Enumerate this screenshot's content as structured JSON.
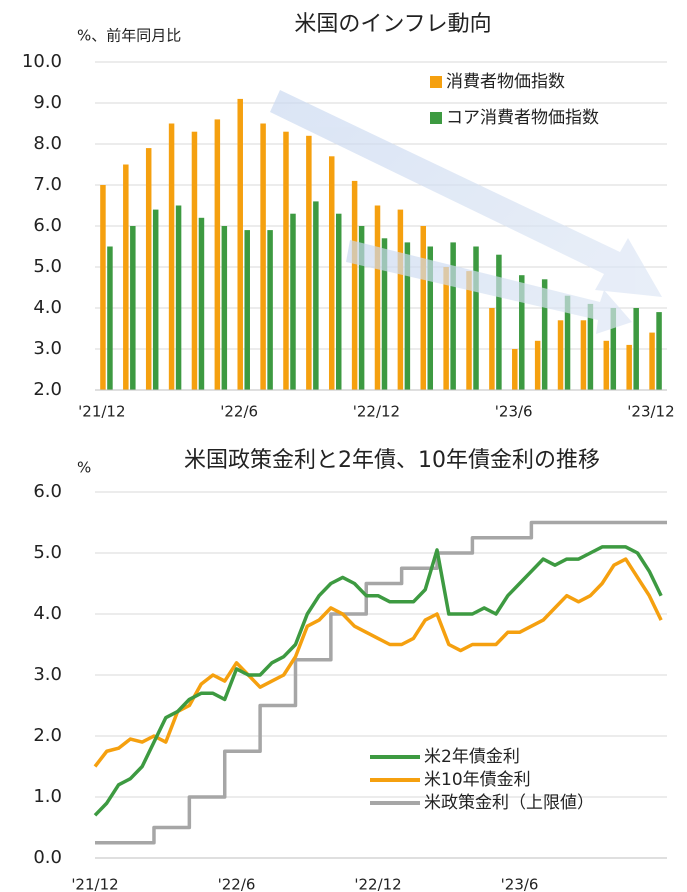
{
  "chart_data": [
    {
      "type": "bar",
      "title": "米国のインフレ動向",
      "y_label": "%、前年同月比",
      "categories": [
        "'21/12",
        null,
        null,
        null,
        null,
        null,
        "'22/6",
        null,
        null,
        null,
        null,
        null,
        "'22/12",
        null,
        null,
        null,
        null,
        null,
        "'23/6",
        null,
        null,
        null,
        null,
        null,
        "'23/12"
      ],
      "series": [
        {
          "name": "消費者物価指数",
          "color": "#f5a00f",
          "values": [
            7.0,
            7.5,
            7.9,
            8.5,
            8.3,
            8.6,
            9.1,
            8.5,
            8.3,
            8.2,
            7.7,
            7.1,
            6.5,
            6.4,
            6.0,
            5.0,
            4.9,
            4.0,
            3.0,
            3.2,
            3.7,
            3.7,
            3.2,
            3.1,
            3.4
          ]
        },
        {
          "name": "コア消費者物価指数",
          "color": "#3d9a41",
          "values": [
            5.5,
            6.0,
            6.4,
            6.5,
            6.2,
            6.0,
            5.9,
            5.9,
            6.3,
            6.6,
            6.3,
            6.0,
            5.7,
            5.6,
            5.5,
            5.6,
            5.5,
            5.3,
            4.8,
            4.7,
            4.3,
            4.1,
            4.0,
            4.0,
            3.9
          ]
        }
      ],
      "ylim": [
        2.0,
        10.0
      ],
      "yticks": [
        {
          "value": 2.0,
          "label": "2.0"
        },
        {
          "value": 3.0,
          "label": "3.0"
        },
        {
          "value": 4.0,
          "label": "4.0"
        },
        {
          "value": 5.0,
          "label": "5.0"
        },
        {
          "value": 6.0,
          "label": "6.0"
        },
        {
          "value": 7.0,
          "label": "7.0"
        },
        {
          "value": 8.0,
          "label": "8.0"
        },
        {
          "value": 9.0,
          "label": "9.0"
        },
        {
          "value": 10.0,
          "label": "10.0"
        }
      ],
      "grid": true,
      "legend": "upper right"
    },
    {
      "type": "line",
      "title": "米国政策金利と2年債、10年債金利の推移",
      "y_label": "%",
      "categories": [
        "'21/12",
        null,
        null,
        null,
        null,
        null,
        null,
        null,
        null,
        null,
        null,
        null,
        "'22/6",
        null,
        null,
        null,
        null,
        null,
        null,
        null,
        null,
        null,
        null,
        null,
        "'22/12",
        null,
        null,
        null,
        null,
        null,
        null,
        null,
        null,
        null,
        null,
        null,
        "'23/6",
        null,
        null,
        null,
        null,
        null,
        null,
        null,
        null,
        null,
        null,
        null,
        null
      ],
      "series": [
        {
          "name": "米2年債金利",
          "color": "#3d9a41",
          "values": [
            0.7,
            0.9,
            1.2,
            1.3,
            1.5,
            1.9,
            2.3,
            2.4,
            2.6,
            2.7,
            2.7,
            2.6,
            3.1,
            3.0,
            3.0,
            3.2,
            3.3,
            3.5,
            4.0,
            4.3,
            4.5,
            4.6,
            4.5,
            4.3,
            4.3,
            4.2,
            4.2,
            4.2,
            4.4,
            5.05,
            4.0,
            4.0,
            4.0,
            4.1,
            4.0,
            4.3,
            4.5,
            4.7,
            4.9,
            4.8,
            4.9,
            4.9,
            5.0,
            5.1,
            5.1,
            5.1,
            5.0,
            4.7,
            4.3
          ]
        },
        {
          "name": "米10年債金利",
          "color": "#f5a00f",
          "values": [
            1.5,
            1.75,
            1.8,
            1.95,
            1.9,
            2.0,
            1.9,
            2.4,
            2.5,
            2.85,
            3.0,
            2.9,
            3.2,
            3.0,
            2.8,
            2.9,
            3.0,
            3.3,
            3.8,
            3.9,
            4.1,
            4.0,
            3.8,
            3.7,
            3.6,
            3.5,
            3.5,
            3.6,
            3.9,
            4.0,
            3.5,
            3.4,
            3.5,
            3.5,
            3.5,
            3.7,
            3.7,
            3.8,
            3.9,
            4.1,
            4.3,
            4.2,
            4.3,
            4.5,
            4.8,
            4.9,
            4.6,
            4.3,
            3.9
          ]
        },
        {
          "name": "米政策金利（上限値）",
          "color": "#a6a6a6",
          "step": true,
          "values": [
            0.25,
            0.25,
            0.25,
            0.25,
            0.25,
            0.5,
            0.5,
            0.5,
            1.0,
            1.0,
            1.0,
            1.75,
            1.75,
            1.75,
            2.5,
            2.5,
            2.5,
            3.25,
            3.25,
            3.25,
            4.0,
            4.0,
            4.0,
            4.5,
            4.5,
            4.5,
            4.75,
            4.75,
            4.75,
            5.0,
            5.0,
            5.0,
            5.25,
            5.25,
            5.25,
            5.25,
            5.25,
            5.5,
            5.5,
            5.5,
            5.5,
            5.5,
            5.5,
            5.5,
            5.5,
            5.5,
            5.5,
            5.5,
            5.5
          ]
        }
      ],
      "ylim": [
        0.0,
        6.0
      ],
      "yticks": [
        {
          "value": 0.0,
          "label": "0.0"
        },
        {
          "value": 1.0,
          "label": "1.0"
        },
        {
          "value": 2.0,
          "label": "2.0"
        },
        {
          "value": 3.0,
          "label": "3.0"
        },
        {
          "value": 4.0,
          "label": "4.0"
        },
        {
          "value": 5.0,
          "label": "5.0"
        },
        {
          "value": 6.0,
          "label": "6.0"
        }
      ],
      "grid": true,
      "legend": "lower right"
    }
  ]
}
